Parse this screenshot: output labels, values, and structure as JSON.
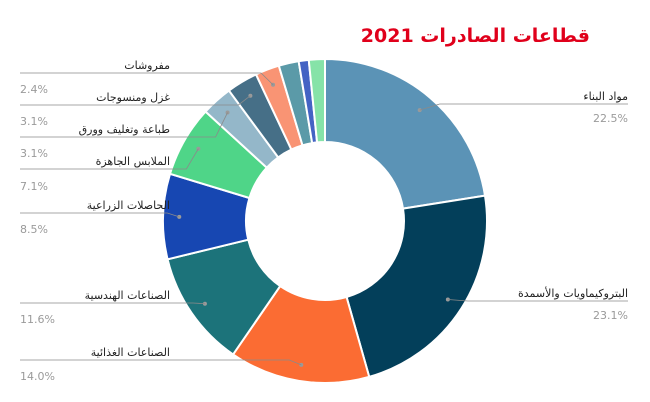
{
  "chart_data": {
    "type": "pie",
    "donut": true,
    "title": "قطاعات الصادرات 2021",
    "slices": [
      {
        "label": "مواد البناء",
        "value": 22.5,
        "pct_label": "22.5%",
        "color": "#5b93b6"
      },
      {
        "label": "البتروكيماويات والأسمدة",
        "value": 23.1,
        "pct_label": "23.1%",
        "color": "#033f5a"
      },
      {
        "label": "الصناعات الغذائية",
        "value": 14.0,
        "pct_label": "14.0%",
        "color": "#fb6c33"
      },
      {
        "label": "الصناعات الهندسية",
        "value": 11.6,
        "pct_label": "11.6%",
        "color": "#1c737a"
      },
      {
        "label": "الحاصلات الزراعية",
        "value": 8.5,
        "pct_label": "8.5%",
        "color": "#1747b2"
      },
      {
        "label": "الملابس الجاهزة",
        "value": 7.1,
        "pct_label": "7.1%",
        "color": "#4fd588"
      },
      {
        "label": "طباعة وتغليف وورق",
        "value": 3.1,
        "pct_label": "3.1%",
        "color": "#94b7c9"
      },
      {
        "label": "غزل ومنسوجات",
        "value": 3.1,
        "pct_label": "3.1%",
        "color": "#466f87"
      },
      {
        "label": "مفروشات",
        "value": 2.4,
        "pct_label": "2.4%",
        "color": "#f99474"
      },
      {
        "label": "",
        "value": 2.0,
        "pct_label": "",
        "color": "#5b9aa8"
      },
      {
        "label": "",
        "value": 1.0,
        "pct_label": "",
        "color": "#4463c4"
      },
      {
        "label": "",
        "value": 1.6,
        "pct_label": "",
        "color": "#86e3a8"
      }
    ]
  }
}
